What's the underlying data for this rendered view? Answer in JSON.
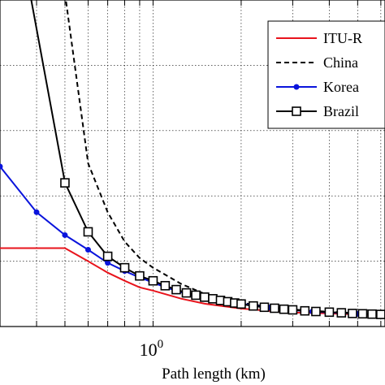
{
  "chart_data": {
    "type": "line",
    "x_scale": "log",
    "xlabel": "Path length (km)",
    "x_ticks": [
      {
        "value": 1,
        "base": "10",
        "exponent": "0"
      }
    ],
    "xlim": [
      0.3,
      6.2
    ],
    "ylim": [
      0,
      1
    ],
    "grid": true,
    "legend_position": "top-right",
    "series": [
      {
        "name": "ITU-R",
        "color": "#e8141c",
        "line_style": "solid",
        "marker": "none",
        "points": [
          [
            0.3,
            0.24
          ],
          [
            0.5,
            0.24
          ],
          [
            0.6,
            0.2
          ],
          [
            0.7,
            0.165
          ],
          [
            0.8,
            0.14
          ],
          [
            0.9,
            0.12
          ],
          [
            1.0,
            0.11
          ],
          [
            1.25,
            0.085
          ],
          [
            1.5,
            0.07
          ],
          [
            2.0,
            0.055
          ],
          [
            2.5,
            0.048
          ],
          [
            3.0,
            0.043
          ],
          [
            4.0,
            0.04
          ],
          [
            5.0,
            0.037
          ],
          [
            6.2,
            0.035
          ]
        ]
      },
      {
        "name": "China",
        "color": "#000000",
        "line_style": "dashed",
        "marker": "none",
        "points": [
          [
            0.5,
            1.02
          ],
          [
            0.6,
            0.5
          ],
          [
            0.7,
            0.35
          ],
          [
            0.8,
            0.26
          ],
          [
            0.9,
            0.21
          ],
          [
            1.0,
            0.18
          ],
          [
            1.25,
            0.13
          ],
          [
            1.5,
            0.1
          ],
          [
            2.0,
            0.073
          ],
          [
            2.5,
            0.06
          ],
          [
            3.0,
            0.052
          ],
          [
            4.0,
            0.045
          ],
          [
            5.0,
            0.041
          ],
          [
            6.2,
            0.038
          ]
        ]
      },
      {
        "name": "Korea",
        "color": "#0a14dc",
        "line_style": "solid",
        "marker": "dot",
        "points": [
          [
            0.3,
            0.49
          ],
          [
            0.4,
            0.35
          ],
          [
            0.5,
            0.28
          ],
          [
            0.6,
            0.235
          ],
          [
            0.7,
            0.195
          ],
          [
            0.8,
            0.17
          ],
          [
            0.9,
            0.15
          ],
          [
            1.0,
            0.135
          ],
          [
            1.1,
            0.12
          ],
          [
            1.2,
            0.11
          ],
          [
            1.3,
            0.1
          ],
          [
            1.4,
            0.093
          ],
          [
            1.5,
            0.087
          ],
          [
            1.75,
            0.077
          ],
          [
            2.0,
            0.07
          ],
          [
            2.5,
            0.058
          ],
          [
            3.0,
            0.05
          ],
          [
            3.5,
            0.046
          ],
          [
            4.0,
            0.043
          ],
          [
            5.0,
            0.039
          ],
          [
            6.2,
            0.036
          ]
        ]
      },
      {
        "name": "Brazil",
        "color": "#000000",
        "line_style": "solid",
        "marker": "square",
        "points": [
          [
            0.38,
            1.02
          ],
          [
            0.5,
            0.44
          ],
          [
            0.6,
            0.29
          ],
          [
            0.7,
            0.215
          ],
          [
            0.8,
            0.18
          ],
          [
            0.9,
            0.155
          ],
          [
            1.0,
            0.14
          ],
          [
            1.1,
            0.125
          ],
          [
            1.2,
            0.113
          ],
          [
            1.3,
            0.103
          ],
          [
            1.4,
            0.096
          ],
          [
            1.5,
            0.09
          ],
          [
            1.6,
            0.085
          ],
          [
            1.7,
            0.08
          ],
          [
            1.8,
            0.076
          ],
          [
            1.9,
            0.072
          ],
          [
            2.0,
            0.069
          ],
          [
            2.2,
            0.063
          ],
          [
            2.4,
            0.059
          ],
          [
            2.6,
            0.056
          ],
          [
            2.8,
            0.053
          ],
          [
            3.0,
            0.051
          ],
          [
            3.3,
            0.048
          ],
          [
            3.6,
            0.046
          ],
          [
            4.0,
            0.044
          ],
          [
            4.4,
            0.042
          ],
          [
            4.8,
            0.04
          ],
          [
            5.2,
            0.039
          ],
          [
            5.6,
            0.038
          ],
          [
            6.0,
            0.037
          ]
        ]
      }
    ]
  }
}
